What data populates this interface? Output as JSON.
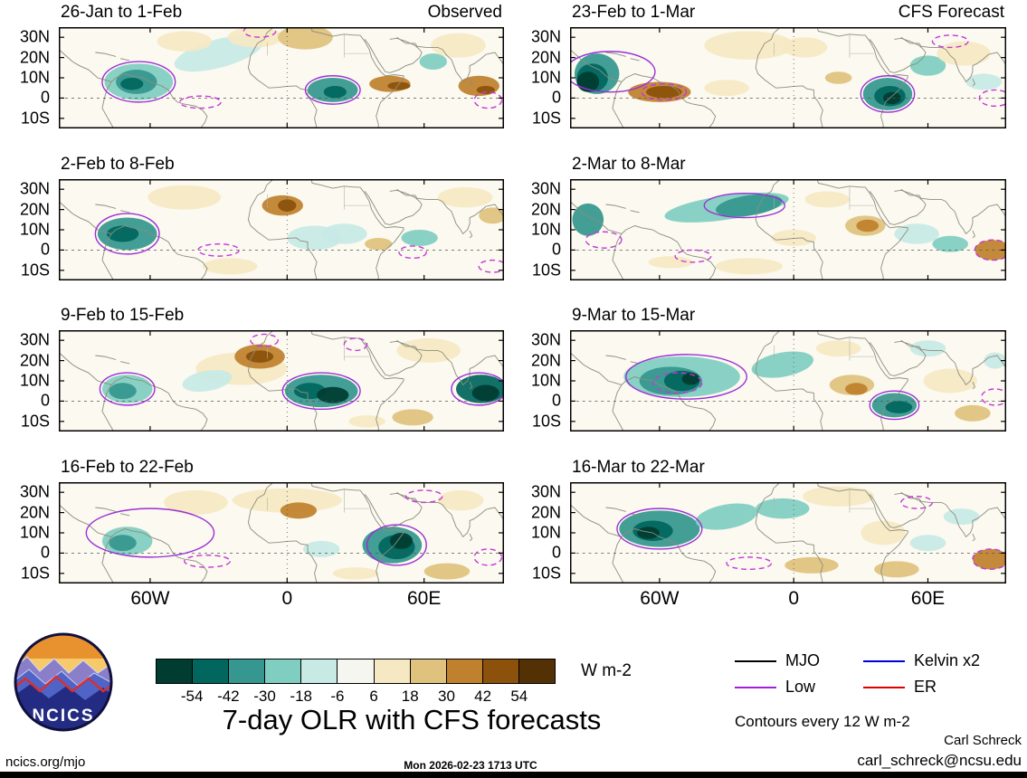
{
  "chart_data": {
    "type": "heatmap",
    "title": "7-day OLR with CFS forecasts",
    "columns": {
      "left": "Observed",
      "right": "CFS Forecast"
    },
    "x_ticks": [
      "60W",
      "0",
      "60E"
    ],
    "x_tick_lons": [
      -60,
      0,
      60
    ],
    "y_ticks": [
      "30N",
      "20N",
      "10N",
      "0",
      "10S"
    ],
    "y_tick_lats": [
      30,
      20,
      10,
      0,
      -10
    ],
    "lon_range": [
      -100,
      95
    ],
    "lat_range": [
      -15,
      35
    ],
    "colorbar": {
      "label": "W m-2",
      "ticks": [
        -54,
        -42,
        -30,
        -18,
        -6,
        6,
        18,
        30,
        42,
        54
      ],
      "colors": [
        "#003c30",
        "#01665e",
        "#35978f",
        "#80cdc1",
        "#c7eae5",
        "#f6f6f0",
        "#f6e8c3",
        "#dfc27d",
        "#bf812d",
        "#8c510a",
        "#543005"
      ]
    },
    "contour_colors": {
      "p": "#9b2fd6",
      "pd": "#c438d8"
    },
    "legend": {
      "items": [
        {
          "label": "MJO",
          "color": "#000000"
        },
        {
          "label": "Low",
          "color": "#a020e0"
        },
        {
          "label": "Kelvin x2",
          "color": "#0000dd"
        },
        {
          "label": "ER",
          "color": "#dd0000"
        }
      ],
      "note": "Contours every 12 W m-2"
    },
    "panels": [
      {
        "title": "26-Jan to 1-Feb",
        "corner": "Observed",
        "blobs": [
          [
            -30,
            22,
            20,
            7,
            4,
            -15
          ],
          [
            -14,
            30,
            12,
            5,
            6,
            0
          ],
          [
            8,
            30,
            12,
            6,
            7,
            0
          ],
          [
            -45,
            28,
            12,
            5,
            6,
            0
          ],
          [
            -65,
            8,
            15,
            9,
            3,
            0
          ],
          [
            -66,
            8,
            9,
            6,
            2,
            0
          ],
          [
            -68,
            7,
            5,
            3,
            1,
            0
          ],
          [
            20,
            4,
            11,
            6,
            2,
            0
          ],
          [
            21,
            3,
            5,
            3,
            1,
            0
          ],
          [
            45,
            7,
            9,
            4,
            8,
            0
          ],
          [
            49,
            6,
            5,
            2,
            9,
            0
          ],
          [
            75,
            26,
            12,
            6,
            6,
            0
          ],
          [
            84,
            6,
            9,
            5,
            8,
            0
          ],
          [
            87,
            4,
            4,
            2,
            9,
            0
          ],
          [
            64,
            18,
            6,
            4,
            3,
            0
          ]
        ],
        "contours": [
          [
            -65,
            8,
            16,
            10,
            "p"
          ],
          [
            20,
            4,
            12,
            7,
            "p"
          ],
          [
            -12,
            33,
            7,
            3,
            "pd"
          ],
          [
            -38,
            -2,
            9,
            3,
            "pd"
          ],
          [
            88,
            -1,
            6,
            4,
            "pd"
          ]
        ]
      },
      {
        "title": "2-Feb to 8-Feb",
        "blobs": [
          [
            -45,
            26,
            16,
            6,
            6,
            0
          ],
          [
            -25,
            -8,
            12,
            4,
            6,
            0
          ],
          [
            -70,
            8,
            13,
            8,
            2,
            0
          ],
          [
            -72,
            8,
            7,
            4,
            1,
            0
          ],
          [
            -2,
            22,
            9,
            5,
            8,
            0
          ],
          [
            0,
            22,
            4,
            3,
            9,
            0
          ],
          [
            12,
            6,
            12,
            6,
            4,
            0
          ],
          [
            25,
            8,
            10,
            5,
            4,
            0
          ],
          [
            40,
            3,
            6,
            3,
            7,
            0
          ],
          [
            58,
            6,
            8,
            4,
            3,
            0
          ],
          [
            78,
            26,
            12,
            5,
            6,
            0
          ],
          [
            90,
            17,
            6,
            4,
            7,
            0
          ]
        ],
        "contours": [
          [
            -70,
            8,
            14,
            10,
            "p"
          ],
          [
            -30,
            0,
            9,
            3,
            "pd"
          ],
          [
            55,
            -1,
            6,
            3,
            "pd"
          ],
          [
            90,
            -8,
            6,
            3,
            "pd"
          ]
        ]
      },
      {
        "title": "9-Feb to 15-Feb",
        "blobs": [
          [
            -20,
            16,
            20,
            8,
            6,
            0
          ],
          [
            -12,
            22,
            11,
            6,
            8,
            0
          ],
          [
            -12,
            22,
            6,
            3,
            9,
            0
          ],
          [
            -35,
            10,
            11,
            5,
            4,
            -10
          ],
          [
            -70,
            6,
            11,
            7,
            3,
            0
          ],
          [
            -72,
            5,
            6,
            4,
            2,
            0
          ],
          [
            15,
            5,
            16,
            8,
            2,
            0
          ],
          [
            10,
            5,
            7,
            4,
            1,
            0
          ],
          [
            20,
            3,
            7,
            4,
            0,
            0
          ],
          [
            85,
            6,
            11,
            7,
            1,
            0
          ],
          [
            87,
            4,
            6,
            4,
            0,
            0
          ],
          [
            55,
            -8,
            9,
            4,
            7,
            0
          ],
          [
            62,
            25,
            14,
            6,
            6,
            0
          ],
          [
            35,
            -10,
            8,
            3,
            6,
            0
          ]
        ],
        "contours": [
          [
            15,
            5,
            17,
            9,
            "p"
          ],
          [
            84,
            6,
            12,
            8,
            "p"
          ],
          [
            -70,
            6,
            12,
            8,
            "p"
          ],
          [
            -10,
            30,
            6,
            3,
            "pd"
          ],
          [
            30,
            28,
            5,
            3,
            "pd"
          ]
        ]
      },
      {
        "title": "16-Feb to 22-Feb",
        "blobs": [
          [
            0,
            26,
            24,
            6,
            6,
            0
          ],
          [
            5,
            21,
            8,
            4,
            8,
            0
          ],
          [
            -40,
            25,
            14,
            6,
            6,
            0
          ],
          [
            -70,
            6,
            11,
            7,
            3,
            0
          ],
          [
            -72,
            5,
            6,
            4,
            2,
            0
          ],
          [
            15,
            2,
            8,
            4,
            4,
            0
          ],
          [
            46,
            4,
            13,
            9,
            2,
            0
          ],
          [
            48,
            3,
            8,
            6,
            1,
            0
          ],
          [
            50,
            6,
            5,
            4,
            0,
            0
          ],
          [
            70,
            -9,
            10,
            4,
            7,
            0
          ],
          [
            76,
            26,
            10,
            5,
            6,
            0
          ],
          [
            30,
            -10,
            10,
            3,
            6,
            0
          ]
        ],
        "contours": [
          [
            -60,
            10,
            28,
            12,
            "p"
          ],
          [
            48,
            4,
            13,
            10,
            "p"
          ],
          [
            -35,
            -4,
            10,
            3,
            "pd"
          ],
          [
            88,
            -2,
            6,
            4,
            "pd"
          ],
          [
            60,
            28,
            8,
            3,
            "pd"
          ]
        ]
      },
      {
        "title": "23-Feb to 1-Mar",
        "corner": "CFS Forecast",
        "blobs": [
          [
            -20,
            26,
            20,
            7,
            6,
            0
          ],
          [
            5,
            25,
            10,
            5,
            6,
            0
          ],
          [
            -30,
            5,
            10,
            4,
            6,
            0
          ],
          [
            -88,
            12,
            10,
            10,
            2,
            0
          ],
          [
            -90,
            10,
            7,
            7,
            1,
            0
          ],
          [
            -92,
            8,
            5,
            5,
            0,
            0
          ],
          [
            -60,
            3,
            14,
            5,
            8,
            0
          ],
          [
            -58,
            3,
            8,
            3,
            9,
            0
          ],
          [
            20,
            10,
            6,
            3,
            7,
            0
          ],
          [
            42,
            2,
            11,
            8,
            2,
            0
          ],
          [
            43,
            1,
            7,
            5,
            1,
            0
          ],
          [
            44,
            0,
            4,
            3,
            0,
            0
          ],
          [
            60,
            16,
            8,
            5,
            3,
            0
          ],
          [
            76,
            22,
            12,
            6,
            6,
            0
          ],
          [
            85,
            8,
            8,
            4,
            4,
            0
          ]
        ],
        "contours": [
          [
            -82,
            13,
            20,
            10,
            "p"
          ],
          [
            42,
            2,
            12,
            9,
            "p"
          ],
          [
            -58,
            3,
            10,
            4,
            "pd"
          ],
          [
            90,
            0,
            7,
            4,
            "pd"
          ],
          [
            70,
            28,
            8,
            3,
            "pd"
          ]
        ]
      },
      {
        "title": "2-Mar to 8-Mar",
        "blobs": [
          [
            -30,
            21,
            28,
            6,
            3,
            -8
          ],
          [
            -20,
            22,
            15,
            5,
            2,
            -8
          ],
          [
            -92,
            15,
            7,
            8,
            2,
            0
          ],
          [
            0,
            6,
            10,
            4,
            6,
            0
          ],
          [
            15,
            25,
            10,
            4,
            6,
            0
          ],
          [
            32,
            12,
            9,
            5,
            7,
            0
          ],
          [
            33,
            12,
            5,
            3,
            8,
            0
          ],
          [
            55,
            8,
            10,
            5,
            4,
            0
          ],
          [
            70,
            3,
            8,
            4,
            3,
            0
          ],
          [
            89,
            0,
            8,
            5,
            8,
            0
          ],
          [
            -20,
            -8,
            15,
            4,
            6,
            0
          ],
          [
            -55,
            -6,
            10,
            3,
            6,
            0
          ]
        ],
        "contours": [
          [
            -22,
            22,
            18,
            6,
            "p"
          ],
          [
            -85,
            5,
            8,
            4,
            "pd"
          ],
          [
            89,
            0,
            8,
            5,
            "pd"
          ],
          [
            -45,
            -3,
            8,
            3,
            "pd"
          ]
        ]
      },
      {
        "title": "9-Mar to 15-Mar",
        "blobs": [
          [
            -50,
            12,
            26,
            10,
            3,
            0
          ],
          [
            -55,
            10,
            14,
            7,
            2,
            0
          ],
          [
            -50,
            10,
            8,
            5,
            1,
            0
          ],
          [
            -46,
            11,
            4,
            3,
            0,
            0
          ],
          [
            -5,
            18,
            14,
            6,
            3,
            -10
          ],
          [
            20,
            26,
            10,
            4,
            6,
            0
          ],
          [
            26,
            8,
            10,
            5,
            7,
            0
          ],
          [
            28,
            6,
            5,
            3,
            8,
            0
          ],
          [
            45,
            -2,
            10,
            6,
            2,
            0
          ],
          [
            47,
            -3,
            6,
            3,
            1,
            0
          ],
          [
            70,
            10,
            12,
            6,
            6,
            0
          ],
          [
            80,
            -6,
            8,
            4,
            7,
            0
          ],
          [
            60,
            26,
            8,
            4,
            4,
            0
          ],
          [
            90,
            20,
            5,
            4,
            4,
            0
          ]
        ],
        "contours": [
          [
            -48,
            12,
            27,
            11,
            "p"
          ],
          [
            -52,
            9,
            11,
            5,
            "pd"
          ],
          [
            45,
            -2,
            11,
            7,
            "p"
          ],
          [
            90,
            2,
            6,
            4,
            "pd"
          ]
        ]
      },
      {
        "title": "16-Mar to 22-Mar",
        "blobs": [
          [
            -60,
            12,
            18,
            9,
            2,
            0
          ],
          [
            -63,
            11,
            9,
            5,
            1,
            0
          ],
          [
            -65,
            10,
            5,
            3,
            0,
            0
          ],
          [
            -30,
            18,
            14,
            6,
            3,
            -10
          ],
          [
            -5,
            22,
            12,
            5,
            3,
            0
          ],
          [
            20,
            28,
            16,
            5,
            6,
            0
          ],
          [
            8,
            -6,
            12,
            4,
            7,
            0
          ],
          [
            40,
            10,
            10,
            6,
            6,
            0
          ],
          [
            46,
            -8,
            10,
            4,
            7,
            0
          ],
          [
            75,
            18,
            8,
            4,
            4,
            0
          ],
          [
            88,
            -3,
            8,
            5,
            8,
            0
          ],
          [
            60,
            5,
            8,
            4,
            4,
            0
          ]
        ],
        "contours": [
          [
            -60,
            12,
            19,
            10,
            "p"
          ],
          [
            -20,
            -5,
            10,
            3,
            "pd"
          ],
          [
            88,
            -3,
            8,
            5,
            "pd"
          ],
          [
            55,
            25,
            7,
            3,
            "pd"
          ]
        ]
      }
    ]
  },
  "footer": {
    "logo_text": "NCICS",
    "site": "ncics.org/mjo",
    "timestamp": "Mon 2026-02-23 1713 UTC",
    "credit_name": "Carl Schreck",
    "credit_email": "carl_schreck@ncsu.edu"
  }
}
